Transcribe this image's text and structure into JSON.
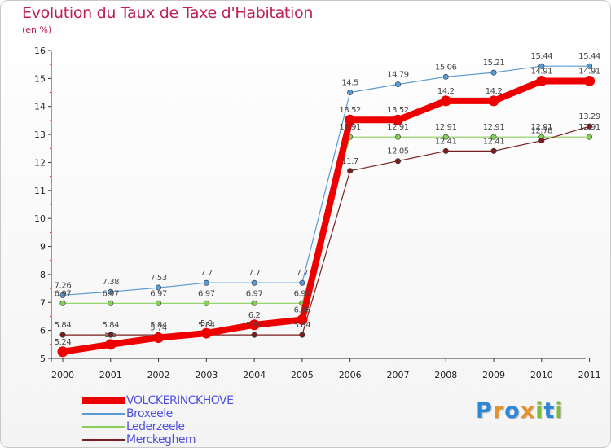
{
  "chart_data": {
    "type": "line",
    "title": "Evolution du Taux de Taxe d'Habitation",
    "subtitle": "(en %)",
    "x": [
      "2000",
      "2001",
      "2002",
      "2003",
      "2004",
      "2005",
      "2006",
      "2007",
      "2008",
      "2009",
      "2010",
      "2011"
    ],
    "ylim": [
      5,
      16
    ],
    "yticks": [
      "5",
      "6",
      "7",
      "8",
      "9",
      "10",
      "11",
      "12",
      "13",
      "14",
      "15",
      "16"
    ],
    "grid": false,
    "legend_position": "bottom-left",
    "series": [
      {
        "name": "VOLCKERINCKHOVE",
        "color": "#ee0000",
        "values": [
          5.24,
          5.5,
          5.74,
          5.9,
          6.2,
          6.38,
          13.52,
          13.52,
          14.2,
          14.2,
          14.91,
          14.91
        ],
        "labels": [
          "5.24",
          "5.5",
          "5.74",
          "5.9",
          "6.2",
          "6.38",
          "13.52",
          "13.52",
          "14.2",
          "14.2",
          "14.91",
          "14.91"
        ]
      },
      {
        "name": "Broxeele",
        "color": "#5b9bd5",
        "values": [
          7.26,
          7.38,
          7.53,
          7.7,
          7.7,
          7.7,
          14.5,
          14.79,
          15.06,
          15.21,
          15.44,
          15.44
        ],
        "labels": [
          "7.26",
          "7.38",
          "7.53",
          "7.7",
          "7.7",
          "7.7",
          "14.5",
          "14.79",
          "15.06",
          "15.21",
          "15.44",
          "15.44"
        ]
      },
      {
        "name": "Lederzeele",
        "color": "#88d05a",
        "values": [
          6.97,
          6.97,
          6.97,
          6.97,
          6.97,
          6.97,
          12.91,
          12.91,
          12.91,
          12.91,
          12.91,
          12.91
        ],
        "labels": [
          "6.97",
          "6.97",
          "6.97",
          "6.97",
          "6.97",
          "6.97",
          "12.91",
          "12.91",
          "12.91",
          "12.91",
          "12.91",
          "12.91"
        ]
      },
      {
        "name": "Merckeghem",
        "color": "#7a1f1f",
        "values": [
          5.84,
          5.84,
          5.84,
          5.84,
          5.84,
          5.84,
          11.7,
          12.05,
          12.41,
          12.41,
          12.78,
          13.29
        ],
        "labels": [
          "5.84",
          "5.84",
          "5.84",
          "5.84",
          "5.84",
          "5.84",
          "11.7",
          "12.05",
          "12.41",
          "12.41",
          "12.78",
          "13.29"
        ]
      }
    ]
  },
  "logo": {
    "letters": [
      "P",
      "r",
      "o",
      "x",
      "i",
      "t",
      "i"
    ],
    "colors": [
      "#2e86d6",
      "#e8912a",
      "#2e86d6",
      "#e8912a",
      "#7fb93a",
      "#2e86d6",
      "#7fb93a"
    ]
  }
}
